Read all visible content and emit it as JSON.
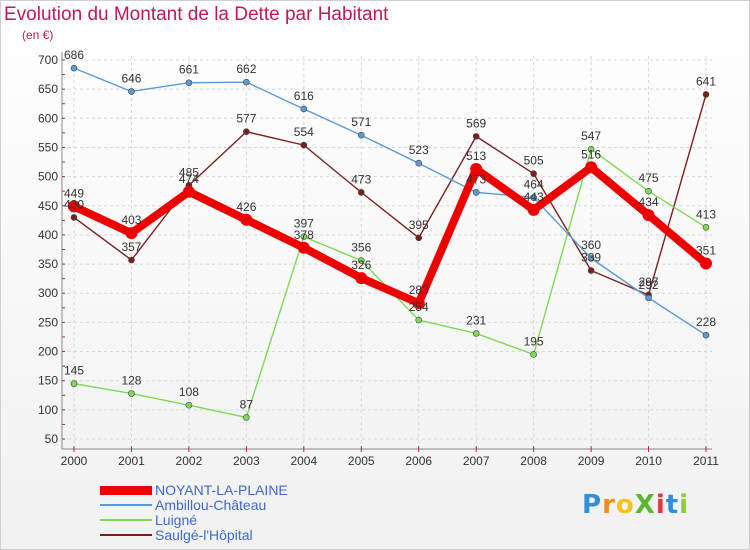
{
  "title": "Evolution du Montant de la Dette par Habitant",
  "subtitle": "(en €)",
  "logo": {
    "text": "ProXiti",
    "letters": [
      "P",
      "r",
      "o",
      "X",
      "i",
      "t",
      "i"
    ],
    "colors": [
      "#2f8fd8",
      "#f28c1e",
      "#f2c21e",
      "#5bb82e",
      "#e23a3a",
      "#2f8fd8",
      "#8ccc34"
    ]
  },
  "chart_data": {
    "type": "line",
    "title": "Evolution du Montant de la Dette par Habitant",
    "ylabel": "(en €)",
    "xlabel": "",
    "x": [
      "2000",
      "2001",
      "2002",
      "2003",
      "2004",
      "2005",
      "2006",
      "2007",
      "2008",
      "2009",
      "2010",
      "2011"
    ],
    "ylim": [
      50,
      700
    ],
    "yticks": [
      50,
      100,
      150,
      200,
      250,
      300,
      350,
      400,
      450,
      500,
      550,
      600,
      650,
      700
    ],
    "grid": true,
    "legend_position": "bottom-left",
    "series": [
      {
        "name": "NOYANT-LA-PLAINE",
        "color": "#ee0000",
        "values": [
          449,
          403,
          474,
          426,
          378,
          326,
          283,
          513,
          443,
          516,
          434,
          351
        ]
      },
      {
        "name": "Ambillou-Château",
        "color": "#5b9bd5",
        "values": [
          686,
          646,
          661,
          662,
          616,
          571,
          523,
          473,
          464,
          360,
          292,
          228
        ]
      },
      {
        "name": "Luigné",
        "color": "#7ed957",
        "values": [
          145,
          128,
          108,
          87,
          397,
          356,
          254,
          231,
          195,
          547,
          475,
          413
        ]
      },
      {
        "name": "Saulgé-l'Hôpital",
        "color": "#7a1f1f",
        "values": [
          430,
          357,
          485,
          577,
          554,
          473,
          395,
          569,
          505,
          339,
          297,
          641
        ]
      }
    ]
  }
}
